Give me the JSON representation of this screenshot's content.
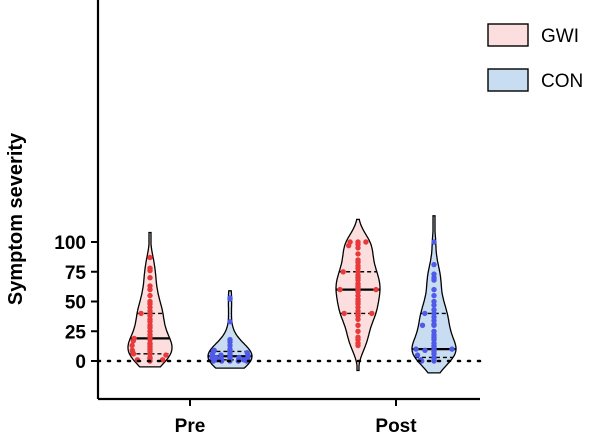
{
  "chart_data": {
    "type": "violin",
    "title": "",
    "xlabel": "",
    "ylabel": "Symptom severity",
    "ylim": [
      -8,
      122
    ],
    "yticks": [
      0,
      25,
      50,
      75,
      100
    ],
    "ytick_labels": [
      "0",
      "25",
      "50",
      "75",
      "100"
    ],
    "categories": [
      "Pre",
      "Post"
    ],
    "reference_line": {
      "y": 0,
      "style": "dotted"
    },
    "legend": {
      "placement": "top-right"
    },
    "series": [
      {
        "name": "GWI",
        "fill": "#fcdede",
        "point_color": "#e8393b",
        "groups": [
          {
            "category": "Pre",
            "median": 19,
            "q1": 6,
            "q3": 40,
            "range": [
              -5,
              108
            ],
            "points": [
              87,
              78,
              76,
              70,
              63,
              60,
              55,
              50,
              48,
              45,
              42,
              40,
              40,
              38,
              35,
              33,
              30,
              28,
              25,
              22,
              20,
              19,
              18,
              17,
              15,
              14,
              13,
              12,
              10,
              9,
              8,
              7,
              6,
              6,
              5,
              3,
              2,
              1,
              1,
              0
            ]
          },
          {
            "category": "Post",
            "median": 60,
            "q1": 40,
            "q3": 75,
            "range": [
              -8,
              119
            ],
            "points": [
              100,
              100,
              100,
              98,
              97,
              95,
              90,
              85,
              83,
              80,
              78,
              75,
              75,
              72,
              70,
              68,
              65,
              63,
              62,
              60,
              60,
              60,
              58,
              55,
              52,
              50,
              48,
              45,
              42,
              40,
              40,
              40,
              38,
              35,
              30,
              25,
              20,
              18,
              15,
              13
            ]
          }
        ]
      },
      {
        "name": "CON",
        "fill": "#c8dcf2",
        "point_color": "#4f5be8",
        "groups": [
          {
            "category": "Pre",
            "median": 4,
            "q1": 1,
            "q3": 8,
            "range": [
              -6,
              59
            ],
            "points": [
              53,
              52,
              33,
              18,
              16,
              13,
              10,
              9,
              8,
              8,
              7,
              6,
              6,
              5,
              5,
              4,
              4,
              4,
              3,
              3,
              3,
              2,
              2,
              2,
              2,
              1,
              1,
              1,
              1,
              1,
              0,
              0,
              0,
              0,
              0
            ]
          },
          {
            "category": "Post",
            "median": 10,
            "q1": 3,
            "q3": 40,
            "range": [
              -10,
              122
            ],
            "points": [
              100,
              81,
              73,
              70,
              68,
              60,
              55,
              50,
              47,
              43,
              40,
              40,
              37,
              34,
              31,
              30,
              30,
              25,
              22,
              20,
              18,
              15,
              13,
              12,
              10,
              10,
              10,
              9,
              8,
              6,
              5,
              3,
              2,
              1,
              0,
              0
            ]
          }
        ]
      }
    ]
  }
}
